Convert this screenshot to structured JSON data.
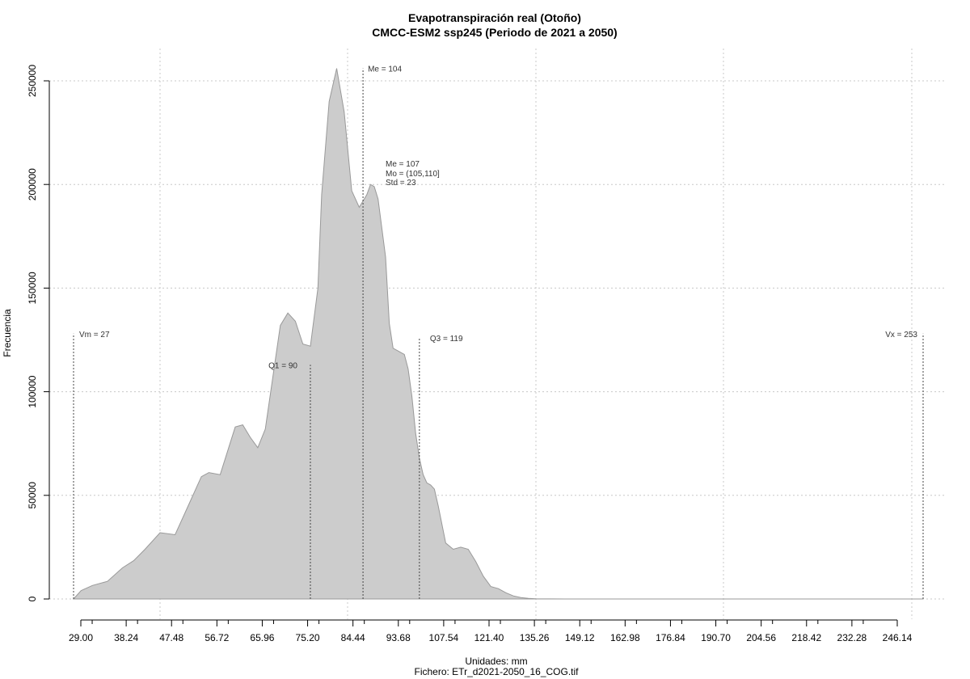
{
  "chart_data": {
    "type": "area",
    "title": "Evapotranspiración real (Otoño)",
    "subtitle": "CMCC-ESM2 ssp245 (Periodo de 2021 a 2050)",
    "xlabel": "Unidades: mm",
    "caption": "Fichero: ETr_d2021-2050_16_COG.tif",
    "ylabel": "Frecuencia",
    "x_tick_labels": [
      "29.00",
      "38.24",
      "47.48",
      "56.72",
      "65.96",
      "75.20",
      "84.44",
      "93.68",
      "107.54",
      "121.40",
      "135.26",
      "149.12",
      "162.98",
      "176.84",
      "190.70",
      "204.56",
      "218.42",
      "232.28",
      "246.14"
    ],
    "y_ticks": [
      0,
      50000,
      100000,
      150000,
      200000,
      250000
    ],
    "y_tick_labels": [
      "0",
      "50000",
      "100000",
      "150000",
      "200000",
      "250000"
    ],
    "ylim": [
      0,
      255000
    ],
    "xlim": [
      26,
      255
    ],
    "grid": true,
    "fill_color": "#cccccc",
    "line_color": "#999999",
    "density": {
      "x": [
        27,
        29,
        32,
        36,
        40,
        43,
        46,
        50,
        54,
        58,
        61,
        63,
        66,
        70,
        72,
        74,
        76,
        78,
        80,
        82,
        84,
        86,
        88,
        90,
        92,
        93,
        95,
        97,
        99,
        101,
        103,
        105,
        106,
        107,
        108,
        110,
        111,
        112,
        113,
        114,
        115,
        116,
        117,
        118,
        119,
        120,
        121,
        122,
        123,
        124,
        126,
        128,
        130,
        132,
        134,
        136,
        138,
        140,
        142,
        144,
        146,
        148,
        150,
        154,
        158,
        162,
        166,
        170,
        174,
        180,
        190,
        210,
        253
      ],
      "y": [
        0,
        4000,
        6500,
        8500,
        15000,
        18500,
        24000,
        32000,
        31000,
        47000,
        59000,
        61000,
        60000,
        83000,
        84000,
        78000,
        73000,
        82000,
        107000,
        132000,
        138000,
        134000,
        123000,
        122000,
        150000,
        195000,
        240000,
        256000,
        235000,
        197000,
        189000,
        195000,
        200000,
        199000,
        193000,
        165000,
        133000,
        121000,
        120000,
        119000,
        118000,
        111000,
        98000,
        80000,
        68000,
        60000,
        56000,
        55000,
        53000,
        45000,
        27000,
        24000,
        25000,
        24000,
        18000,
        11000,
        6000,
        5000,
        3000,
        1500,
        700,
        300,
        100,
        30,
        10,
        0,
        0,
        0,
        0,
        0,
        0,
        0,
        0
      ]
    },
    "markers": [
      {
        "value": 27,
        "label": "Vm = 27",
        "height": 128000
      },
      {
        "value": 90,
        "label": "Q1 = 90",
        "height": 113000
      },
      {
        "value": 104,
        "label": "Me = 104",
        "height": 256000
      },
      {
        "value": 119,
        "label": "Q3 = 119",
        "height": 126000
      },
      {
        "value": 253,
        "label": "Vx = 253",
        "height": 128000
      }
    ],
    "stats": [
      "Me = 107",
      "Mo = (105,110]",
      "Std = 23"
    ]
  }
}
